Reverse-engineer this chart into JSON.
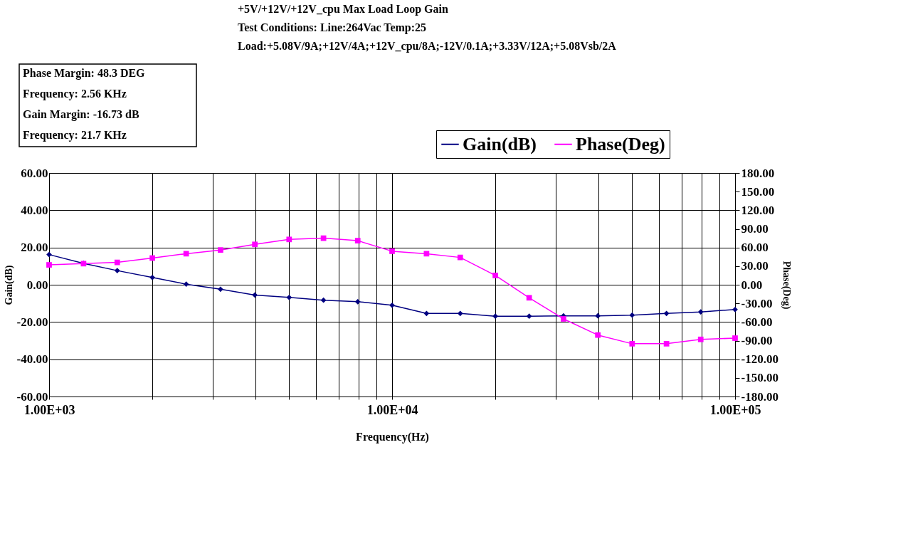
{
  "chart_data": {
    "type": "line",
    "title": "+5V/+12V/+12V_cpu Max Load Loop Gain",
    "subtitle": "Test Conditions:  Line:264Vac  Temp:25",
    "annotations": [
      "Load:+5.08V/9A;+12V/4A;+12V_cpu/8A;-12V/0.1A;+3.33V/12A;+5.08Vsb/2A",
      "Phase Margin: 48.3 DEG",
      "Frequency: 2.56 KHz",
      "Gain Margin: -16.73 dB",
      "Frequency: 21.7 KHz"
    ],
    "xlabel": "Frequency(Hz)",
    "ylabel": "Gain(dB)",
    "y2label": "Phase(Deg)",
    "x": [
      1000,
      1260,
      1580,
      2000,
      2510,
      3160,
      3980,
      5010,
      6310,
      7940,
      10000,
      12600,
      15800,
      20000,
      25100,
      31600,
      39800,
      50100,
      63100,
      79400,
      100000
    ],
    "series": [
      {
        "name": "Gain(dB)",
        "color": "#000080",
        "marker": "diamond",
        "values": [
          16.2,
          11.5,
          7.6,
          3.9,
          0.3,
          -2.4,
          -5.5,
          -6.8,
          -8.3,
          -9.1,
          -11.0,
          -15.4,
          -15.4,
          -16.9,
          -16.9,
          -16.7,
          -16.7,
          -16.3,
          -15.4,
          -14.6,
          -13.3
        ]
      },
      {
        "name": "Phase(Deg)",
        "color": "#ff00ff",
        "marker": "square",
        "axis": "y2",
        "values": [
          32,
          34,
          36,
          43,
          50,
          56,
          65,
          73,
          75,
          71,
          54,
          50,
          44,
          15,
          -21,
          -55,
          -81,
          -95,
          -95,
          -88,
          -86
        ]
      }
    ],
    "log": "x",
    "xlim": [
      1000,
      100000
    ],
    "xticks": [
      {
        "value": 1000,
        "label": "1.00E+03"
      },
      {
        "value": 2000,
        "label": null
      },
      {
        "value": 3000,
        "label": null
      },
      {
        "value": 4000,
        "label": null
      },
      {
        "value": 5000,
        "label": null
      },
      {
        "value": 6000,
        "label": null
      },
      {
        "value": 7000,
        "label": null
      },
      {
        "value": 8000,
        "label": null
      },
      {
        "value": 9000,
        "label": null
      },
      {
        "value": 10000,
        "label": "1.00E+04"
      },
      {
        "value": 20000,
        "label": null
      },
      {
        "value": 30000,
        "label": null
      },
      {
        "value": 40000,
        "label": null
      },
      {
        "value": 50000,
        "label": null
      },
      {
        "value": 60000,
        "label": null
      },
      {
        "value": 70000,
        "label": null
      },
      {
        "value": 80000,
        "label": null
      },
      {
        "value": 90000,
        "label": null
      },
      {
        "value": 100000,
        "label": "1.00E+05"
      }
    ],
    "ylim": [
      -60,
      60
    ],
    "yticks": [
      {
        "value": -60,
        "label": "-60.00"
      },
      {
        "value": -40,
        "label": "-40.00"
      },
      {
        "value": -20,
        "label": "-20.00"
      },
      {
        "value": 0,
        "label": "0.00"
      },
      {
        "value": 20,
        "label": "20.00"
      },
      {
        "value": 40,
        "label": "40.00"
      },
      {
        "value": 60,
        "label": "60.00"
      }
    ],
    "y2lim": [
      -180,
      180
    ],
    "y2ticks": [
      {
        "value": -180,
        "label": "-180.00"
      },
      {
        "value": -150,
        "label": "-150.00"
      },
      {
        "value": -120,
        "label": "-120.00"
      },
      {
        "value": -90,
        "label": "-90.00"
      },
      {
        "value": -60,
        "label": "-60.00"
      },
      {
        "value": -30,
        "label": "-30.00"
      },
      {
        "value": 0,
        "label": "0.00"
      },
      {
        "value": 30,
        "label": "30.00"
      },
      {
        "value": 60,
        "label": "60.00"
      },
      {
        "value": 90,
        "label": "90.00"
      },
      {
        "value": 120,
        "label": "120.00"
      },
      {
        "value": 150,
        "label": "150.00"
      },
      {
        "value": 180,
        "label": "180.00"
      }
    ],
    "grid": true,
    "legend": "top right"
  }
}
